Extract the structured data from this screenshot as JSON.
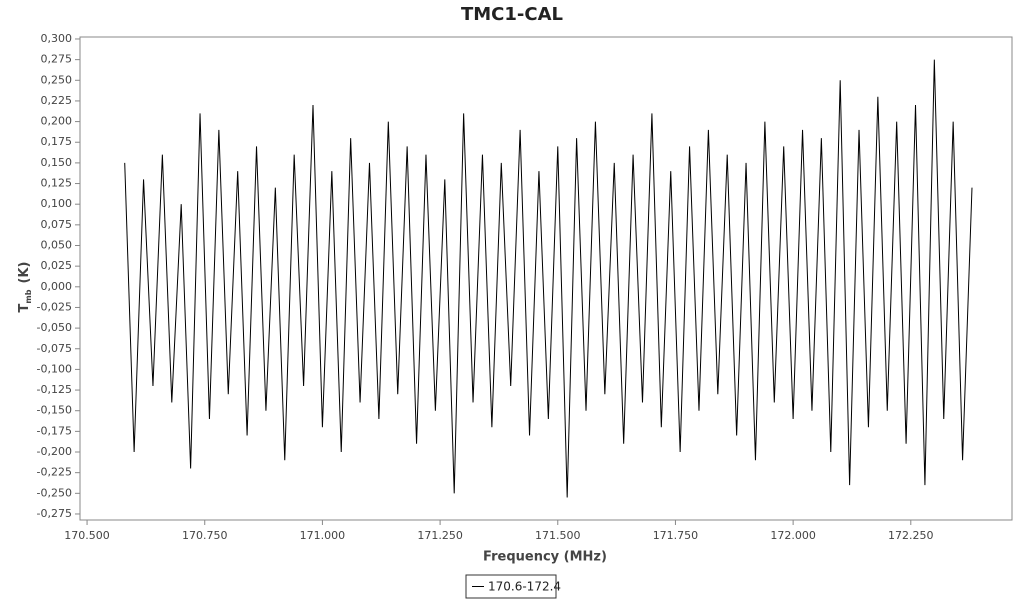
{
  "chart_data": {
    "type": "line",
    "title": "TMC1-CAL",
    "x_label": "Frequency (MHz)",
    "y_label": "T",
    "y_label_sub": "mb",
    "y_label_unit": "(K)",
    "x": [
      170.58,
      170.6,
      170.62,
      170.64,
      170.66,
      170.68,
      170.7,
      170.72,
      170.74,
      170.76,
      170.78,
      170.8,
      170.82,
      170.84,
      170.86,
      170.88,
      170.9,
      170.92,
      170.94,
      170.96,
      170.98,
      171.0,
      171.02,
      171.04,
      171.06,
      171.08,
      171.1,
      171.12,
      171.14,
      171.16,
      171.18,
      171.2,
      171.22,
      171.24,
      171.26,
      171.28,
      171.3,
      171.32,
      171.34,
      171.36,
      171.38,
      171.4,
      171.42,
      171.44,
      171.46,
      171.48,
      171.5,
      171.52,
      171.54,
      171.56,
      171.58,
      171.6,
      171.62,
      171.64,
      171.66,
      171.68,
      171.7,
      171.72,
      171.74,
      171.76,
      171.78,
      171.8,
      171.82,
      171.84,
      171.86,
      171.88,
      171.9,
      171.92,
      171.94,
      171.96,
      171.98,
      172.0,
      172.02,
      172.04,
      172.06,
      172.08,
      172.1,
      172.12,
      172.14,
      172.16,
      172.18,
      172.2,
      172.22,
      172.24,
      172.26,
      172.28,
      172.3,
      172.32,
      172.34,
      172.36,
      172.38
    ],
    "series": [
      {
        "name": "170.6-172.4",
        "color": "#000000",
        "values": [
          0.15,
          -0.2,
          0.13,
          -0.12,
          0.16,
          -0.14,
          0.1,
          -0.22,
          0.21,
          -0.16,
          0.19,
          -0.13,
          0.14,
          -0.18,
          0.17,
          -0.15,
          0.12,
          -0.21,
          0.16,
          -0.12,
          0.22,
          -0.17,
          0.14,
          -0.2,
          0.18,
          -0.14,
          0.15,
          -0.16,
          0.2,
          -0.13,
          0.17,
          -0.19,
          0.16,
          -0.15,
          0.13,
          -0.25,
          0.21,
          -0.14,
          0.16,
          -0.17,
          0.15,
          -0.12,
          0.19,
          -0.18,
          0.14,
          -0.16,
          0.17,
          -0.255,
          0.18,
          -0.15,
          0.2,
          -0.13,
          0.15,
          -0.19,
          0.16,
          -0.14,
          0.21,
          -0.17,
          0.14,
          -0.2,
          0.17,
          -0.15,
          0.19,
          -0.13,
          0.16,
          -0.18,
          0.15,
          -0.21,
          0.2,
          -0.14,
          0.17,
          -0.16,
          0.19,
          -0.15,
          0.18,
          -0.2,
          0.25,
          -0.24,
          0.19,
          -0.17,
          0.23,
          -0.15,
          0.2,
          -0.19,
          0.22,
          -0.24,
          0.275,
          -0.16,
          0.2,
          -0.21,
          0.12
        ]
      }
    ],
    "xlim": [
      170.485,
      172.465
    ],
    "ylim": [
      -0.2823,
      0.3024
    ],
    "xticks": [
      {
        "value": 170.5,
        "label": "170.500"
      },
      {
        "value": 170.75,
        "label": "170.750"
      },
      {
        "value": 171.0,
        "label": "171.000"
      },
      {
        "value": 171.25,
        "label": "171.250"
      },
      {
        "value": 171.5,
        "label": "171.500"
      },
      {
        "value": 171.75,
        "label": "171.750"
      },
      {
        "value": 172.0,
        "label": "172.000"
      },
      {
        "value": 172.25,
        "label": "172.250"
      }
    ],
    "yticks": [
      {
        "value": 0.3,
        "label": "0,300"
      },
      {
        "value": 0.275,
        "label": "0,275"
      },
      {
        "value": 0.25,
        "label": "0,250"
      },
      {
        "value": 0.225,
        "label": "0,225"
      },
      {
        "value": 0.2,
        "label": "0,200"
      },
      {
        "value": 0.175,
        "label": "0,175"
      },
      {
        "value": 0.15,
        "label": "0,150"
      },
      {
        "value": 0.125,
        "label": "0,125"
      },
      {
        "value": 0.1,
        "label": "0,100"
      },
      {
        "value": 0.075,
        "label": "0,075"
      },
      {
        "value": 0.05,
        "label": "0,050"
      },
      {
        "value": 0.025,
        "label": "0,025"
      },
      {
        "value": 0,
        "label": "0,000"
      },
      {
        "value": -0.025,
        "label": "-0,025"
      },
      {
        "value": -0.05,
        "label": "-0,050"
      },
      {
        "value": -0.075,
        "label": "-0,075"
      },
      {
        "value": -0.1,
        "label": "-0,100"
      },
      {
        "value": -0.125,
        "label": "-0,125"
      },
      {
        "value": -0.15,
        "label": "-0,150"
      },
      {
        "value": -0.175,
        "label": "-0,175"
      },
      {
        "value": -0.2,
        "label": "-0,200"
      },
      {
        "value": -0.225,
        "label": "-0,225"
      },
      {
        "value": -0.25,
        "label": "-0,250"
      },
      {
        "value": -0.275,
        "label": "-0,275"
      }
    ],
    "grid": false,
    "legend": "bottom"
  }
}
